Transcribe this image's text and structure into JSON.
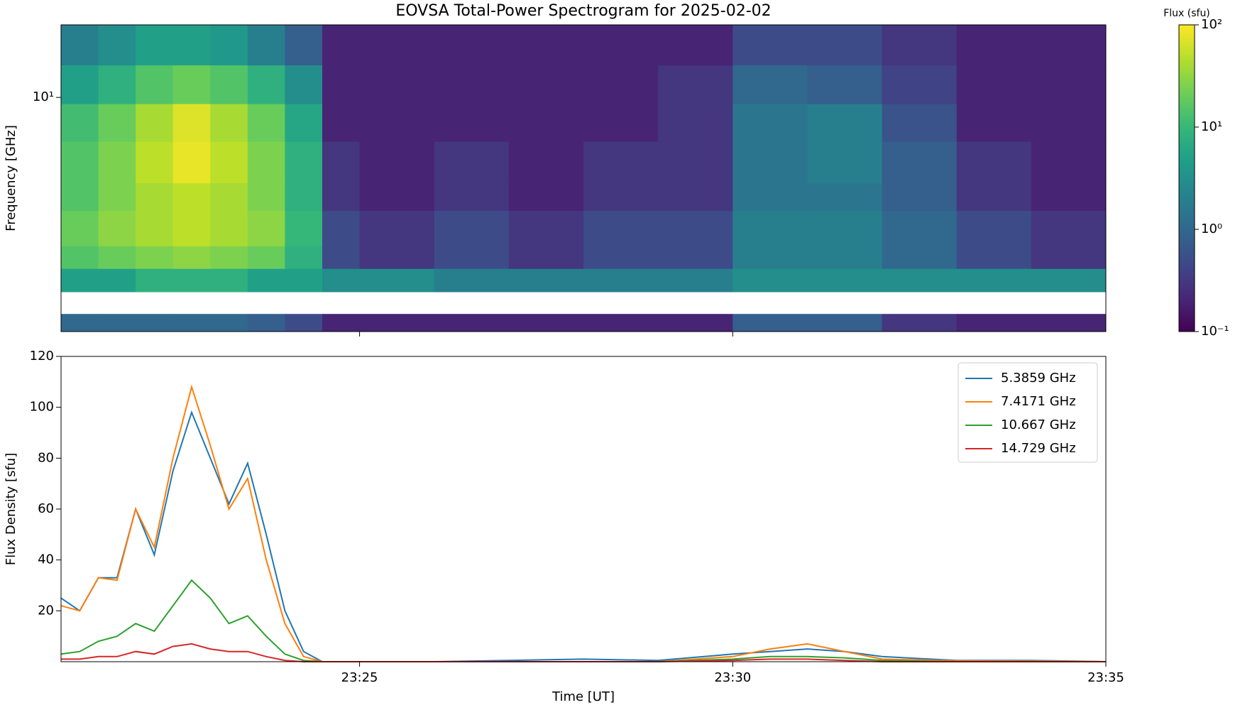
{
  "chart_data": [
    {
      "type": "heatmap",
      "title": "EOVSA Total-Power Spectrogram for 2025-02-02",
      "ylabel": "Frequency [GHz]",
      "ylog": true,
      "x": [
        21,
        21.5,
        22,
        22.5,
        23,
        23.5,
        24,
        24.5,
        25,
        26,
        27,
        28,
        29,
        30,
        31,
        32,
        33,
        34,
        35
      ],
      "y": [
        1.5,
        1.73,
        2.07,
        2.5,
        3,
        4,
        5,
        7,
        9.5,
        13,
        18
      ],
      "z": [
        [
          1,
          1,
          1,
          1,
          1,
          0.8,
          0.5,
          0.2,
          0.2,
          0.2,
          0.2,
          0.2,
          0.2,
          0.8,
          0.8,
          0.3,
          0.2,
          0.2
        ],
        [
          null,
          null,
          null,
          null,
          null,
          null,
          null,
          null,
          null,
          null,
          null,
          null,
          null,
          null,
          null,
          null,
          null,
          null
        ],
        [
          5,
          5,
          8,
          8,
          8,
          5,
          5,
          3,
          3,
          2,
          2,
          2,
          2,
          3,
          3,
          3,
          3,
          3
        ],
        [
          15,
          20,
          25,
          30,
          25,
          20,
          8,
          0.5,
          0.3,
          0.5,
          0.3,
          0.5,
          0.5,
          2,
          2,
          1,
          0.5,
          0.3
        ],
        [
          20,
          30,
          40,
          50,
          40,
          30,
          10,
          0.5,
          0.3,
          0.5,
          0.3,
          0.5,
          0.5,
          2,
          2,
          1,
          0.5,
          0.3
        ],
        [
          15,
          25,
          40,
          50,
          40,
          25,
          8,
          0.3,
          0.2,
          0.3,
          0.2,
          0.3,
          0.3,
          1.5,
          1.5,
          0.8,
          0.3,
          0.2
        ],
        [
          15,
          25,
          50,
          80,
          50,
          25,
          8,
          0.3,
          0.2,
          0.3,
          0.2,
          0.3,
          0.3,
          1.5,
          2,
          0.8,
          0.3,
          0.2
        ],
        [
          12,
          20,
          40,
          70,
          40,
          20,
          6,
          0.2,
          0.2,
          0.2,
          0.2,
          0.2,
          0.3,
          1.5,
          2,
          0.6,
          0.2,
          0.2
        ],
        [
          5,
          8,
          15,
          20,
          15,
          8,
          3,
          0.2,
          0.2,
          0.2,
          0.2,
          0.2,
          0.3,
          1,
          0.8,
          0.4,
          0.2,
          0.2
        ],
        [
          2,
          3,
          5,
          5,
          4,
          2,
          0.8,
          0.2,
          0.2,
          0.2,
          0.2,
          0.2,
          0.2,
          0.5,
          0.5,
          0.3,
          0.2,
          0.2
        ]
      ],
      "xlim": [
        21,
        35
      ],
      "xticks": [
        25,
        30
      ],
      "ylim": [
        1.5,
        18
      ],
      "yticks": [
        {
          "value": 10,
          "label": "10¹"
        }
      ],
      "colorbar": {
        "label": "Flux (sfu)",
        "colormap": "viridis",
        "log": true,
        "lim": [
          0.1,
          100
        ],
        "ticks": [
          {
            "value": 0.1,
            "label": "10⁻¹"
          },
          {
            "value": 1,
            "label": "10⁰"
          },
          {
            "value": 10,
            "label": "10¹"
          },
          {
            "value": 100,
            "label": "10²"
          }
        ]
      }
    },
    {
      "type": "line",
      "xlabel": "Time [UT]",
      "ylabel": "Flux Density [sfu]",
      "x": [
        21,
        21.25,
        21.5,
        21.75,
        22,
        22.25,
        22.5,
        22.75,
        23,
        23.25,
        23.5,
        23.75,
        24,
        24.25,
        24.5,
        25,
        26,
        27,
        28,
        29,
        30,
        30.5,
        31,
        31.5,
        32,
        33,
        34,
        35
      ],
      "series": [
        {
          "name": "5.3859 GHz",
          "color": "#1f77b4",
          "values": [
            25,
            20,
            33,
            33,
            60,
            42,
            75,
            98,
            80,
            62,
            78,
            50,
            20,
            4,
            0,
            0,
            0,
            0.5,
            1,
            0.5,
            3,
            4,
            5,
            4,
            2,
            0.5,
            0.5,
            0
          ]
        },
        {
          "name": "7.4171 GHz",
          "color": "#ff7f0e",
          "values": [
            22,
            20,
            33,
            32,
            60,
            45,
            80,
            108,
            85,
            60,
            72,
            40,
            15,
            2,
            0,
            0,
            0,
            0,
            0,
            0,
            2,
            5,
            7,
            4,
            1,
            0.3,
            0.2,
            0
          ]
        },
        {
          "name": "10.667 GHz",
          "color": "#2ca02c",
          "values": [
            3,
            4,
            8,
            10,
            15,
            12,
            22,
            32,
            25,
            15,
            18,
            10,
            3,
            0.5,
            0,
            0,
            0,
            0,
            0,
            0,
            1,
            2,
            2,
            1.5,
            0.5,
            0,
            0,
            0
          ]
        },
        {
          "name": "14.729 GHz",
          "color": "#d62728",
          "values": [
            1,
            1,
            2,
            2,
            4,
            3,
            6,
            7,
            5,
            4,
            4,
            2,
            0.5,
            0,
            0,
            0,
            0,
            0,
            0,
            0,
            0.5,
            1,
            1,
            0.5,
            0,
            0,
            0,
            0
          ]
        }
      ],
      "xlim": [
        21,
        35
      ],
      "xticks": [
        {
          "value": 25,
          "label": "23:25"
        },
        {
          "value": 30,
          "label": "23:30"
        },
        {
          "value": 35,
          "label": "23:35"
        }
      ],
      "ylim": [
        0,
        120
      ],
      "yticks": [
        20,
        40,
        60,
        80,
        100,
        120
      ],
      "legend": "upper right"
    }
  ]
}
